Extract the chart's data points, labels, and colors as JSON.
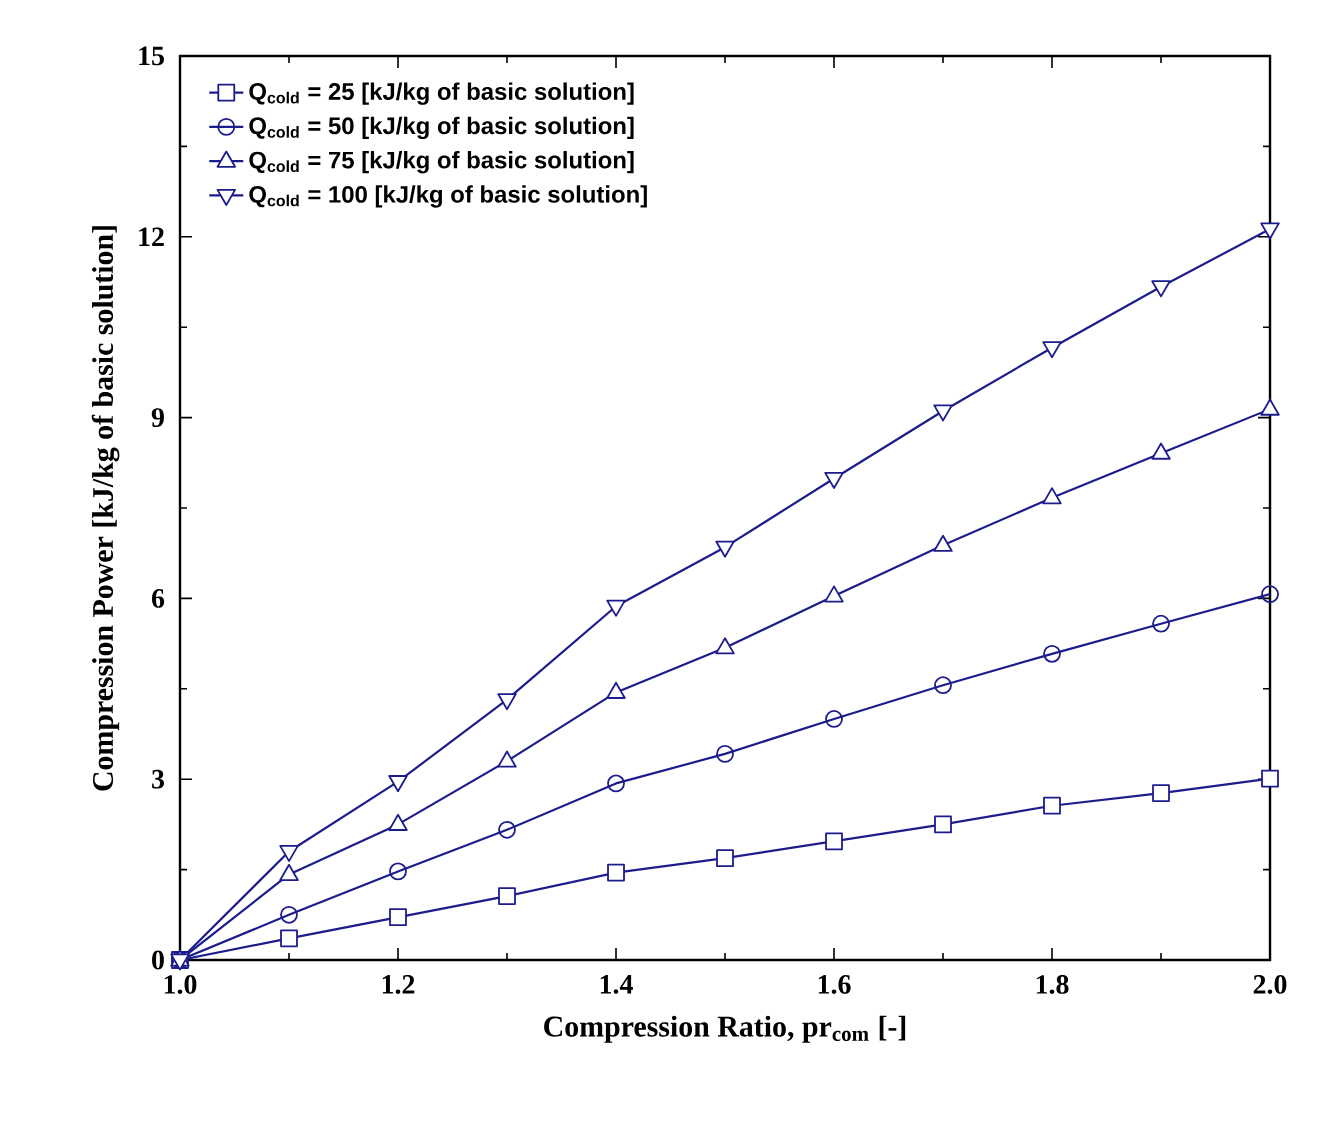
{
  "chart_data": {
    "type": "line",
    "xlabel": "Compression Ratio, pr$_{com}$ [-]",
    "ylabel": "Compression Power [kJ/kg of basic solution]",
    "x": [
      1.0,
      1.1,
      1.2,
      1.3,
      1.4,
      1.5,
      1.6,
      1.7,
      1.8,
      1.9,
      2.0
    ],
    "series": [
      {
        "name": "Q$_{cold}$ = 25 [kJ/kg of basic solution]",
        "color": "#1c1c8c",
        "marker": "square",
        "values": [
          0,
          0.36,
          0.71,
          1.06,
          1.45,
          1.69,
          1.97,
          2.25,
          2.56,
          2.77,
          3.01
        ]
      },
      {
        "name": "Q$_{cold}$ = 50 [kJ/kg of basic solution]",
        "color": "#1c1c8c",
        "marker": "circle",
        "values": [
          0,
          0.75,
          1.47,
          2.16,
          2.93,
          3.42,
          4.0,
          4.56,
          5.08,
          5.58,
          6.07
        ]
      },
      {
        "name": "Q$_{cold}$ = 75 [kJ/kg of basic solution]",
        "color": "#1c1c8c",
        "marker": "triangle",
        "values": [
          0,
          1.42,
          2.25,
          3.3,
          4.44,
          5.18,
          6.04,
          6.88,
          7.67,
          8.41,
          9.14
        ]
      },
      {
        "name": "Q$_{cold}$ = 100 [kJ/kg of basic solution]",
        "color": "#1c1c8c",
        "marker": "triangle-down",
        "values": [
          0,
          1.8,
          2.96,
          4.32,
          5.87,
          6.85,
          7.99,
          9.11,
          10.16,
          11.17,
          12.13
        ]
      }
    ],
    "xlim": [
      1.0,
      2.0
    ],
    "xticks": [
      {
        "value": 1.0,
        "label": "1.0"
      },
      {
        "value": 1.2,
        "label": "1.2"
      },
      {
        "value": 1.4,
        "label": "1.4"
      },
      {
        "value": 1.6,
        "label": "1.6"
      },
      {
        "value": 1.8,
        "label": "1.8"
      },
      {
        "value": 2.0,
        "label": "2.0"
      }
    ],
    "ylim": [
      0,
      15
    ],
    "yticks": [
      0,
      3,
      6,
      9,
      12,
      15
    ],
    "grid": false,
    "legend": "top left",
    "line_style": "solid"
  }
}
